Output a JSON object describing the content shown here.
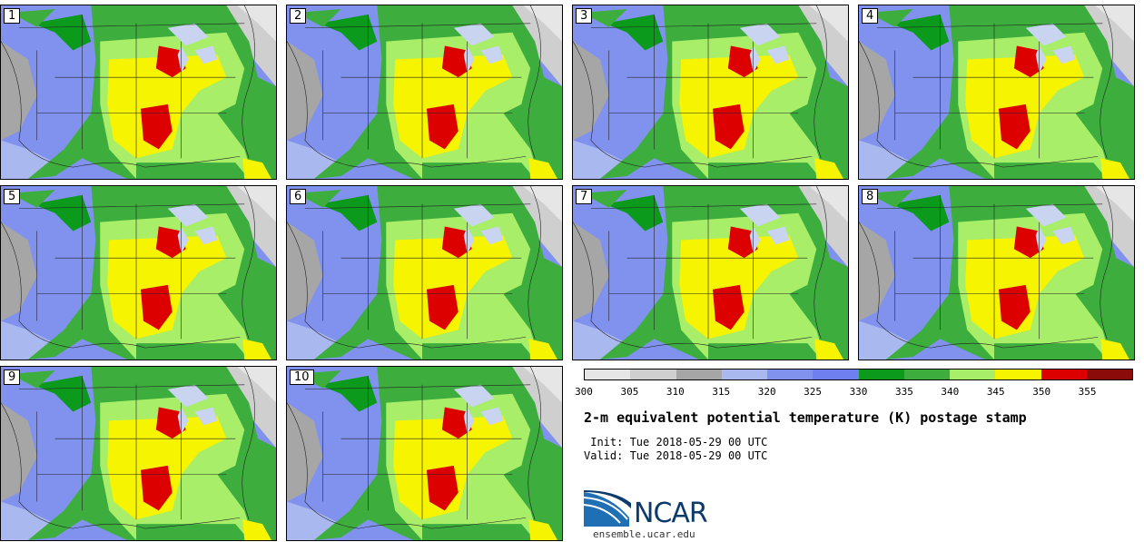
{
  "panels": [
    {
      "label": "1"
    },
    {
      "label": "2"
    },
    {
      "label": "3"
    },
    {
      "label": "4"
    },
    {
      "label": "5"
    },
    {
      "label": "6"
    },
    {
      "label": "7"
    },
    {
      "label": "8"
    },
    {
      "label": "9"
    },
    {
      "label": "10"
    }
  ],
  "colorbar": {
    "colors": [
      "#e6e6e6",
      "#cfcfcf",
      "#a6a6a6",
      "#aab8f0",
      "#8092ee",
      "#6f7ff0",
      "#0c9a1c",
      "#3dae3d",
      "#a8ee68",
      "#f7f400",
      "#dd0000",
      "#8b0a0a"
    ],
    "ticks": [
      "300",
      "305",
      "310",
      "315",
      "320",
      "325",
      "330",
      "335",
      "340",
      "345",
      "350",
      "355"
    ]
  },
  "title": "2-m equivalent potential temperature (K) postage stamp",
  "init": " Init: Tue 2018-05-29 00 UTC",
  "valid": "Valid: Tue 2018-05-29 00 UTC",
  "logo": {
    "name": "NCAR",
    "url": "ensemble.ucar.edu"
  }
}
